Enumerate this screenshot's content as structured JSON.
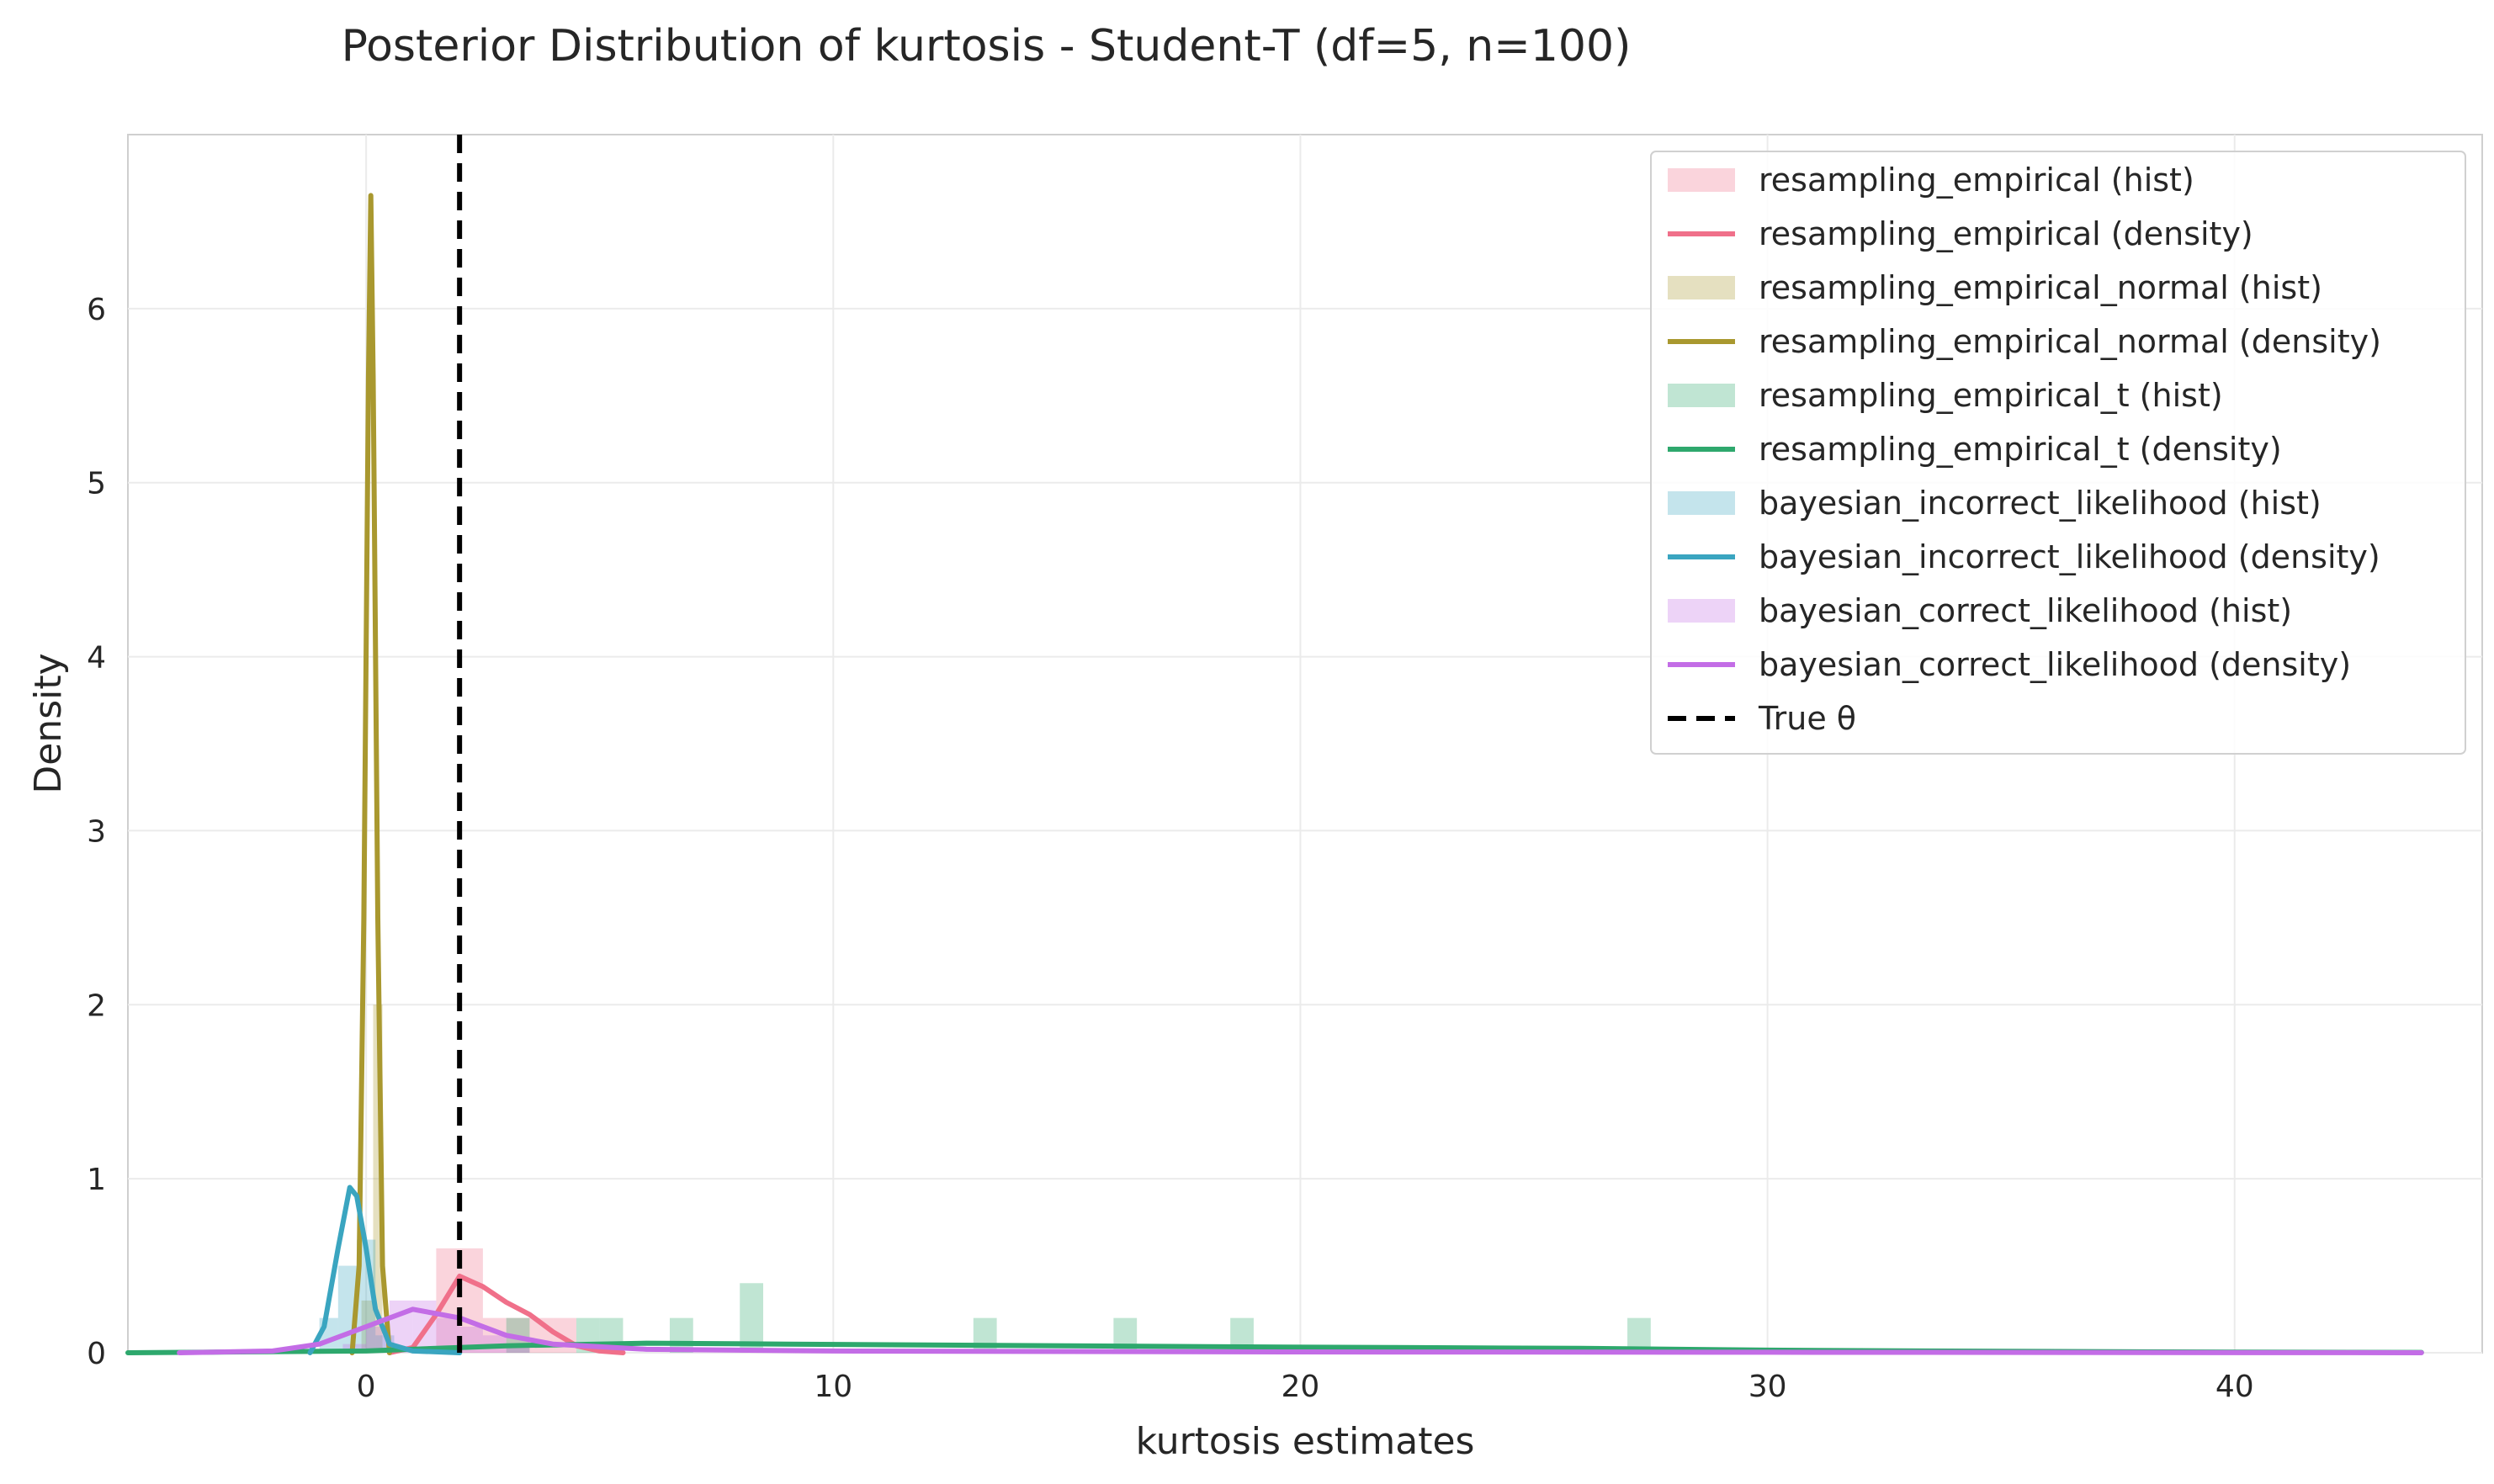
{
  "chart_data": {
    "type": "histogram+density",
    "title": "Posterior Distribution of kurtosis - Student-T (df=5, n=100)",
    "xlabel": "kurtosis estimates",
    "ylabel": "Density",
    "xlim": [
      -5.1,
      45.3
    ],
    "ylim": [
      0,
      7.0
    ],
    "xticks": [
      0,
      10,
      20,
      30,
      40
    ],
    "yticks": [
      0,
      1,
      2,
      3,
      4,
      5,
      6
    ],
    "grid": true,
    "legend_position": "top-right",
    "true_theta": 2.0,
    "series": [
      {
        "name": "resampling_empirical",
        "color": "#f0708a",
        "hist": [
          [
            1.5,
            2.5,
            0.6
          ],
          [
            2.5,
            3.0,
            0.2
          ],
          [
            3.0,
            3.5,
            0.2
          ],
          [
            3.5,
            4.0,
            0.2
          ],
          [
            4.0,
            4.5,
            0.2
          ]
        ],
        "density": [
          [
            0.5,
            0.0
          ],
          [
            1.0,
            0.03
          ],
          [
            1.5,
            0.22
          ],
          [
            2.0,
            0.44
          ],
          [
            2.5,
            0.38
          ],
          [
            3.0,
            0.29
          ],
          [
            3.5,
            0.22
          ],
          [
            4.0,
            0.12
          ],
          [
            4.5,
            0.04
          ],
          [
            5.0,
            0.01
          ],
          [
            5.5,
            0.0
          ]
        ]
      },
      {
        "name": "resampling_empirical_normal",
        "color": "#a9982f",
        "hist": [
          [
            -0.1,
            0.15,
            0.3
          ],
          [
            0.15,
            0.35,
            2.0
          ]
        ],
        "density": [
          [
            -0.3,
            0.0
          ],
          [
            -0.15,
            0.5
          ],
          [
            -0.05,
            2.5
          ],
          [
            0.05,
            5.6
          ],
          [
            0.1,
            6.65
          ],
          [
            0.15,
            5.6
          ],
          [
            0.25,
            2.5
          ],
          [
            0.35,
            0.5
          ],
          [
            0.5,
            0.0
          ]
        ]
      },
      {
        "name": "resampling_empirical_t",
        "color": "#2ea86d",
        "hist": [
          [
            3.0,
            3.5,
            0.2
          ],
          [
            4.5,
            5.0,
            0.2
          ],
          [
            5.0,
            5.5,
            0.2
          ],
          [
            6.5,
            7.0,
            0.2
          ],
          [
            8.0,
            8.5,
            0.4
          ],
          [
            13.0,
            13.5,
            0.2
          ],
          [
            16.0,
            16.5,
            0.2
          ],
          [
            18.5,
            19.0,
            0.2
          ],
          [
            27.0,
            27.5,
            0.2
          ]
        ],
        "density": [
          [
            -5.1,
            0.0
          ],
          [
            0.0,
            0.01
          ],
          [
            3.0,
            0.04
          ],
          [
            6.0,
            0.055
          ],
          [
            9.0,
            0.05
          ],
          [
            12.0,
            0.045
          ],
          [
            15.0,
            0.04
          ],
          [
            18.0,
            0.035
          ],
          [
            22.0,
            0.03
          ],
          [
            26.0,
            0.025
          ],
          [
            30.0,
            0.015
          ],
          [
            35.0,
            0.008
          ],
          [
            40.0,
            0.004
          ],
          [
            44.0,
            0.002
          ]
        ]
      },
      {
        "name": "bayesian_incorrect_likelihood",
        "color": "#3aa5c0",
        "hist": [
          [
            -1.0,
            -0.6,
            0.2
          ],
          [
            -0.6,
            -0.2,
            0.5
          ],
          [
            -0.2,
            0.2,
            0.65
          ],
          [
            0.2,
            0.6,
            0.1
          ]
        ],
        "density": [
          [
            -1.2,
            0.0
          ],
          [
            -0.9,
            0.15
          ],
          [
            -0.6,
            0.6
          ],
          [
            -0.35,
            0.95
          ],
          [
            -0.2,
            0.9
          ],
          [
            0.0,
            0.6
          ],
          [
            0.2,
            0.25
          ],
          [
            0.5,
            0.05
          ],
          [
            1.0,
            0.01
          ],
          [
            2.0,
            0.0
          ]
        ]
      },
      {
        "name": "bayesian_correct_likelihood",
        "color": "#c36de6",
        "hist": [
          [
            -0.5,
            0.0,
            0.05
          ],
          [
            0.0,
            0.5,
            0.15
          ],
          [
            0.5,
            1.0,
            0.3
          ],
          [
            1.0,
            1.5,
            0.3
          ],
          [
            1.5,
            2.0,
            0.2
          ],
          [
            2.0,
            2.5,
            0.15
          ],
          [
            2.5,
            3.0,
            0.1
          ],
          [
            3.0,
            3.5,
            0.05
          ]
        ],
        "density": [
          [
            -4.0,
            0.0
          ],
          [
            -2.0,
            0.01
          ],
          [
            -1.0,
            0.05
          ],
          [
            0.0,
            0.15
          ],
          [
            1.0,
            0.25
          ],
          [
            2.0,
            0.2
          ],
          [
            3.0,
            0.1
          ],
          [
            4.0,
            0.05
          ],
          [
            6.0,
            0.02
          ],
          [
            10.0,
            0.01
          ],
          [
            20.0,
            0.005
          ],
          [
            30.0,
            0.003
          ],
          [
            44.0,
            0.0
          ]
        ]
      }
    ],
    "legend": [
      {
        "label": "resampling_empirical (hist)",
        "kind": "patch",
        "color": "#f0708a"
      },
      {
        "label": "resampling_empirical (density)",
        "kind": "line",
        "color": "#f0708a"
      },
      {
        "label": "resampling_empirical_normal (hist)",
        "kind": "patch",
        "color": "#a9982f"
      },
      {
        "label": "resampling_empirical_normal (density)",
        "kind": "line",
        "color": "#a9982f"
      },
      {
        "label": "resampling_empirical_t (hist)",
        "kind": "patch",
        "color": "#2ea86d"
      },
      {
        "label": "resampling_empirical_t (density)",
        "kind": "line",
        "color": "#2ea86d"
      },
      {
        "label": "bayesian_incorrect_likelihood (hist)",
        "kind": "patch",
        "color": "#3aa5c0"
      },
      {
        "label": "bayesian_incorrect_likelihood (density)",
        "kind": "line",
        "color": "#3aa5c0"
      },
      {
        "label": "bayesian_correct_likelihood (hist)",
        "kind": "patch",
        "color": "#c36de6"
      },
      {
        "label": "bayesian_correct_likelihood (density)",
        "kind": "line",
        "color": "#c36de6"
      },
      {
        "label": "True θ",
        "kind": "dashed",
        "color": "#000000"
      }
    ]
  }
}
